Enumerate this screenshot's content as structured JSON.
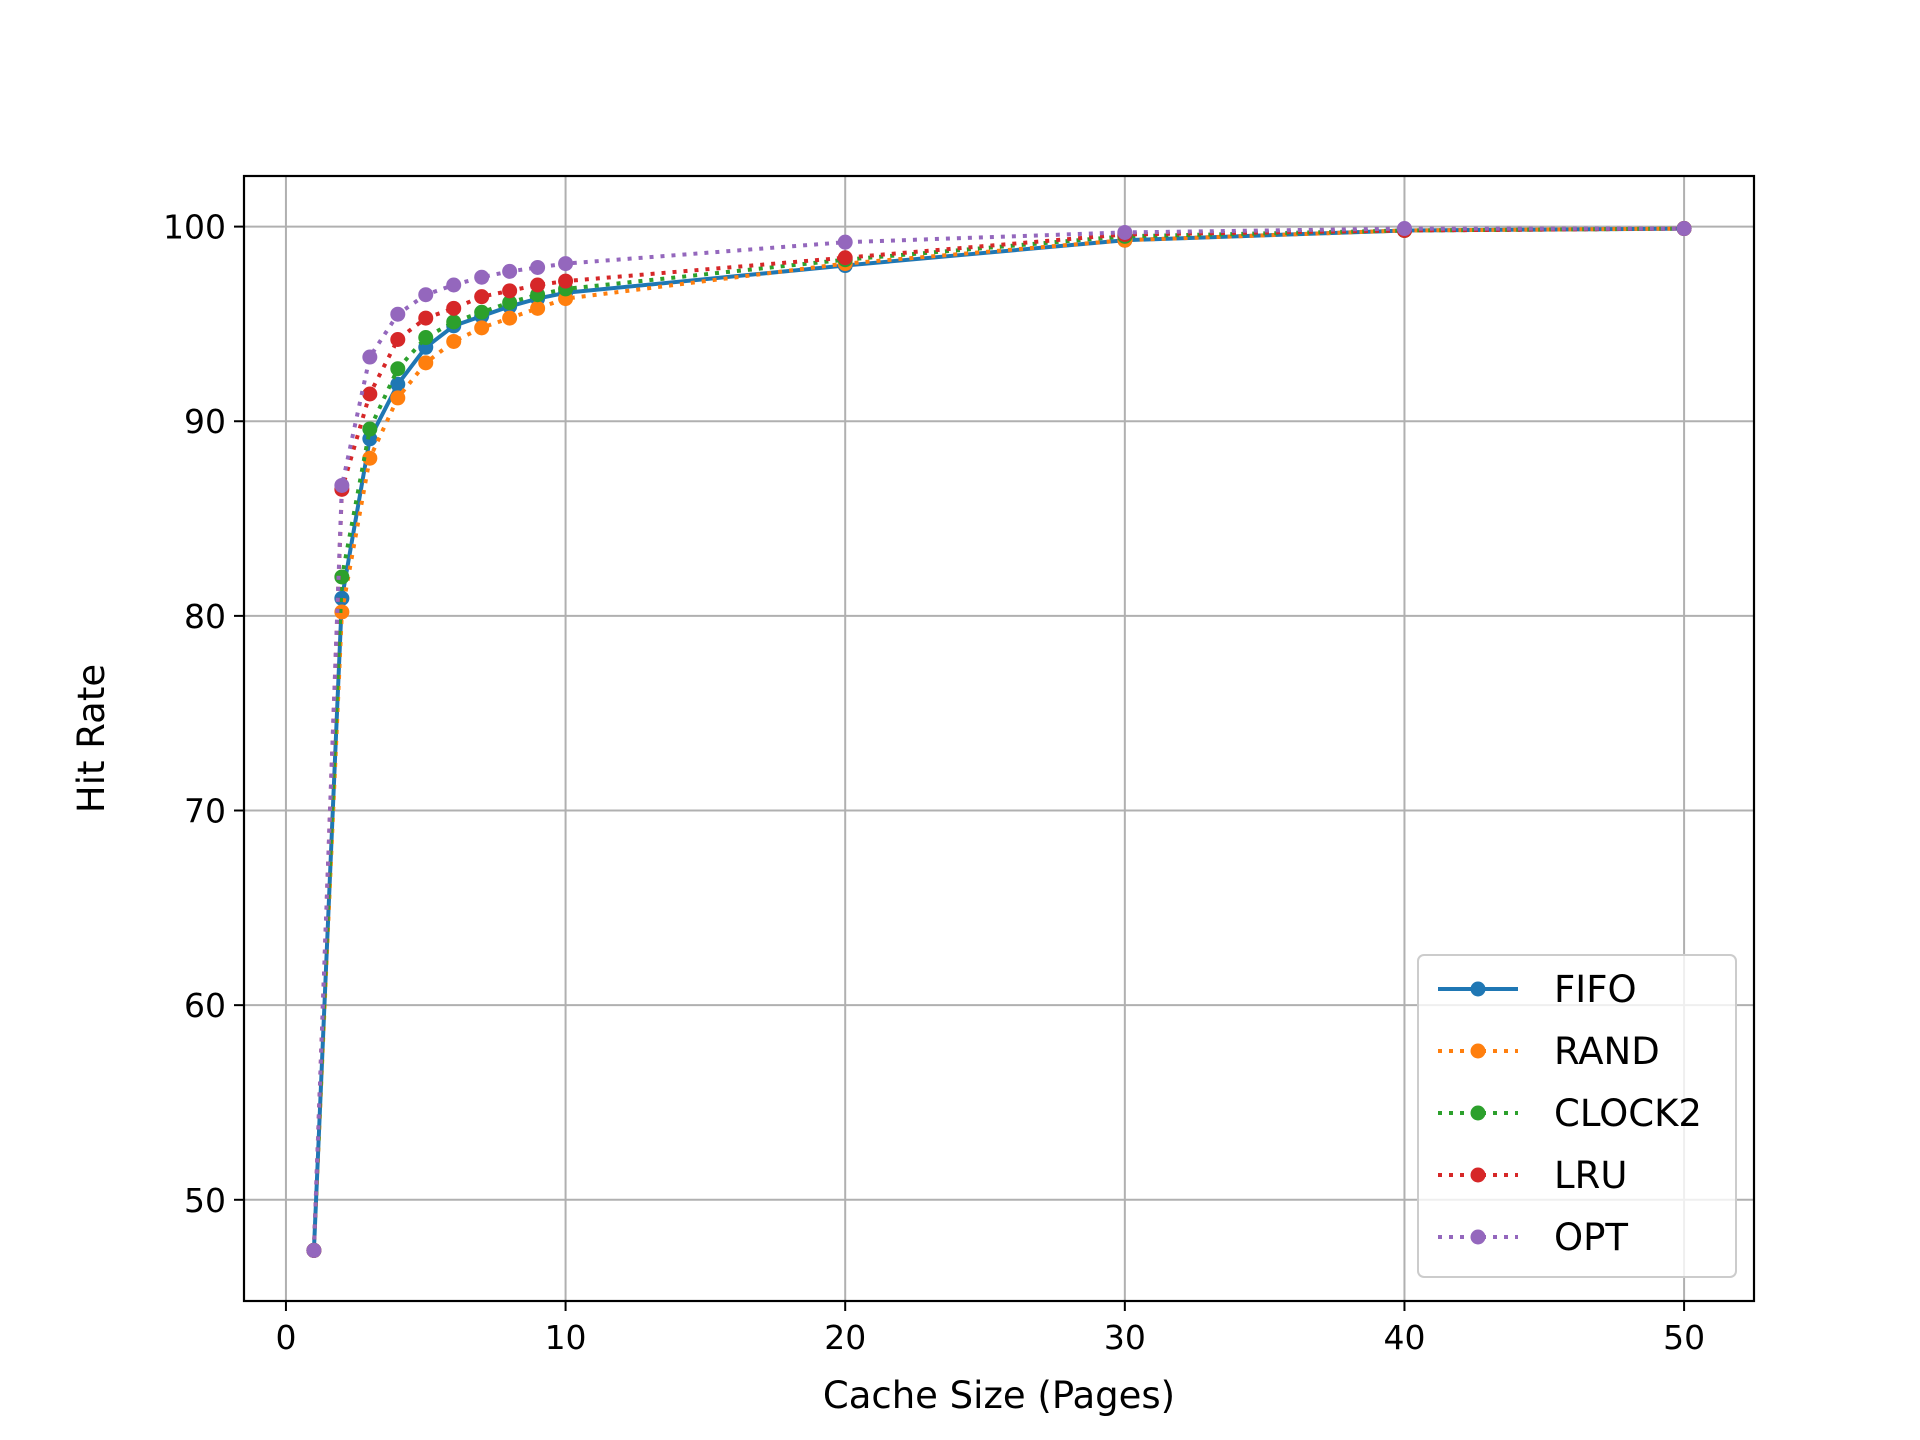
{
  "chart_data": {
    "type": "line",
    "title": "",
    "xlabel": "Cache Size (Pages)",
    "ylabel": "Hit Rate",
    "xlim": [
      -1.5,
      52.5
    ],
    "ylim": [
      44.8,
      102.6
    ],
    "xticks": [
      0,
      10,
      20,
      30,
      40,
      50
    ],
    "yticks": [
      50,
      60,
      70,
      80,
      90,
      100
    ],
    "grid": true,
    "legend_position": "lower-right",
    "x": [
      1,
      2,
      3,
      4,
      5,
      6,
      7,
      8,
      9,
      10,
      20,
      30,
      40,
      50
    ],
    "series": [
      {
        "name": "FIFO",
        "color": "#1f77b4",
        "line_style": "solid",
        "values": [
          47.4,
          80.9,
          89.1,
          91.9,
          93.8,
          94.9,
          95.4,
          95.9,
          96.3,
          96.6,
          98.0,
          99.3,
          99.8,
          99.9
        ]
      },
      {
        "name": "RAND",
        "color": "#ff7f0e",
        "line_style": "dotted",
        "values": [
          47.4,
          80.2,
          88.1,
          91.2,
          93.0,
          94.1,
          94.8,
          95.3,
          95.8,
          96.3,
          98.1,
          99.3,
          99.8,
          99.9
        ]
      },
      {
        "name": "CLOCK2",
        "color": "#2ca02c",
        "line_style": "dotted",
        "values": [
          47.4,
          82.0,
          89.6,
          92.7,
          94.3,
          95.1,
          95.6,
          96.1,
          96.5,
          96.8,
          98.3,
          99.5,
          99.8,
          99.9
        ]
      },
      {
        "name": "LRU",
        "color": "#d62728",
        "line_style": "dotted",
        "values": [
          47.4,
          86.5,
          91.4,
          94.2,
          95.3,
          95.8,
          96.4,
          96.7,
          97.0,
          97.2,
          98.4,
          99.6,
          99.8,
          99.9
        ]
      },
      {
        "name": "OPT",
        "color": "#9467bd",
        "line_style": "dotted",
        "values": [
          47.4,
          86.7,
          93.3,
          95.5,
          96.5,
          97.0,
          97.4,
          97.7,
          97.9,
          98.1,
          99.2,
          99.7,
          99.9,
          99.9
        ]
      }
    ]
  }
}
